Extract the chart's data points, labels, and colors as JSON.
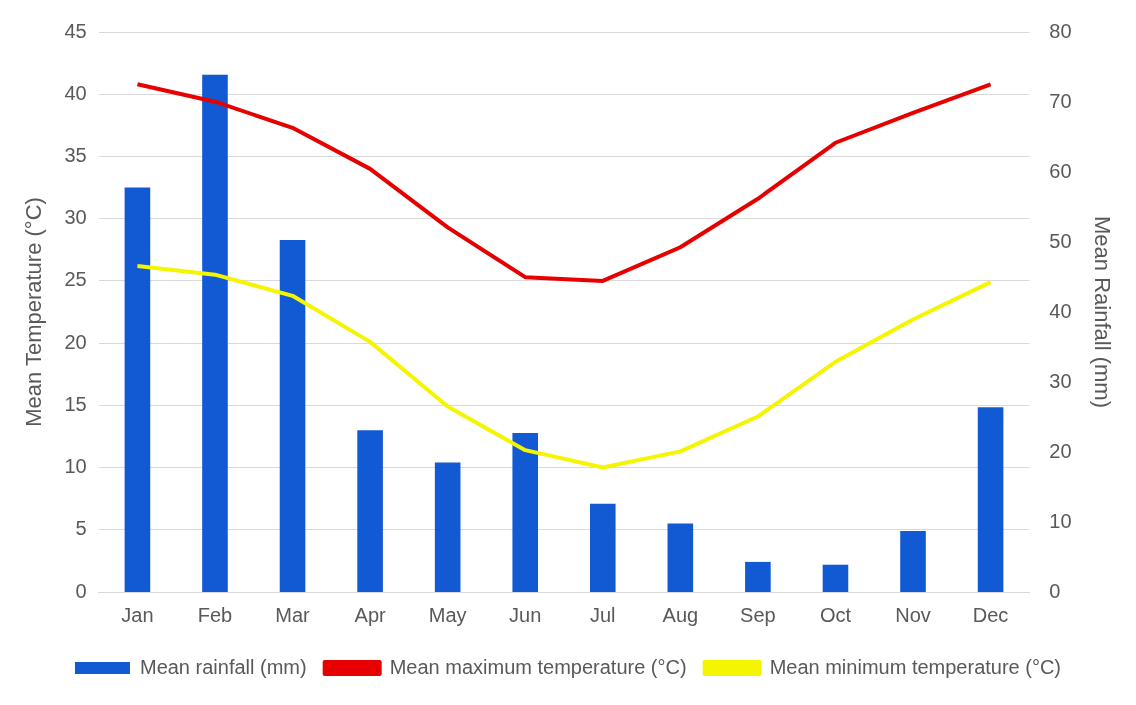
{
  "chart_data": {
    "type": "bar",
    "categories": [
      "Jan",
      "Feb",
      "Mar",
      "Apr",
      "May",
      "Jun",
      "Jul",
      "Aug",
      "Sep",
      "Oct",
      "Nov",
      "Dec"
    ],
    "ylabel": "Mean Temperature (°C)",
    "y2label": "Mean Rainfall (mm)",
    "ylim": [
      0,
      45
    ],
    "yticks": [
      0,
      5,
      10,
      15,
      20,
      25,
      30,
      35,
      40,
      45
    ],
    "y2lim": [
      0,
      80
    ],
    "y2ticks": [
      0,
      10,
      20,
      30,
      40,
      50,
      60,
      70,
      80
    ],
    "grid": "y",
    "legend": "bottom",
    "marker": "none",
    "line_style": "solid",
    "series": [
      {
        "name": "Mean rainfall (mm)",
        "axis": "y2",
        "color": "#115ad3",
        "values": [
          57.8,
          73.9,
          50.3,
          23.1,
          18.5,
          22.7,
          12.6,
          9.8,
          4.3,
          3.9,
          8.7,
          26.4
        ]
      },
      {
        "name": "Mean maximum temperature (°C)",
        "type": "line",
        "color": "#e60000",
        "values": [
          40.8,
          39.4,
          37.3,
          34.0,
          29.3,
          25.3,
          25.0,
          27.7,
          31.6,
          36.1,
          38.5,
          40.8
        ]
      },
      {
        "name": "Mean minimum temperature (°C)",
        "type": "line",
        "color": "#f5f500",
        "values": [
          26.2,
          25.5,
          23.8,
          20.1,
          14.9,
          11.4,
          10.0,
          11.3,
          14.1,
          18.5,
          21.9,
          24.9
        ]
      }
    ]
  }
}
